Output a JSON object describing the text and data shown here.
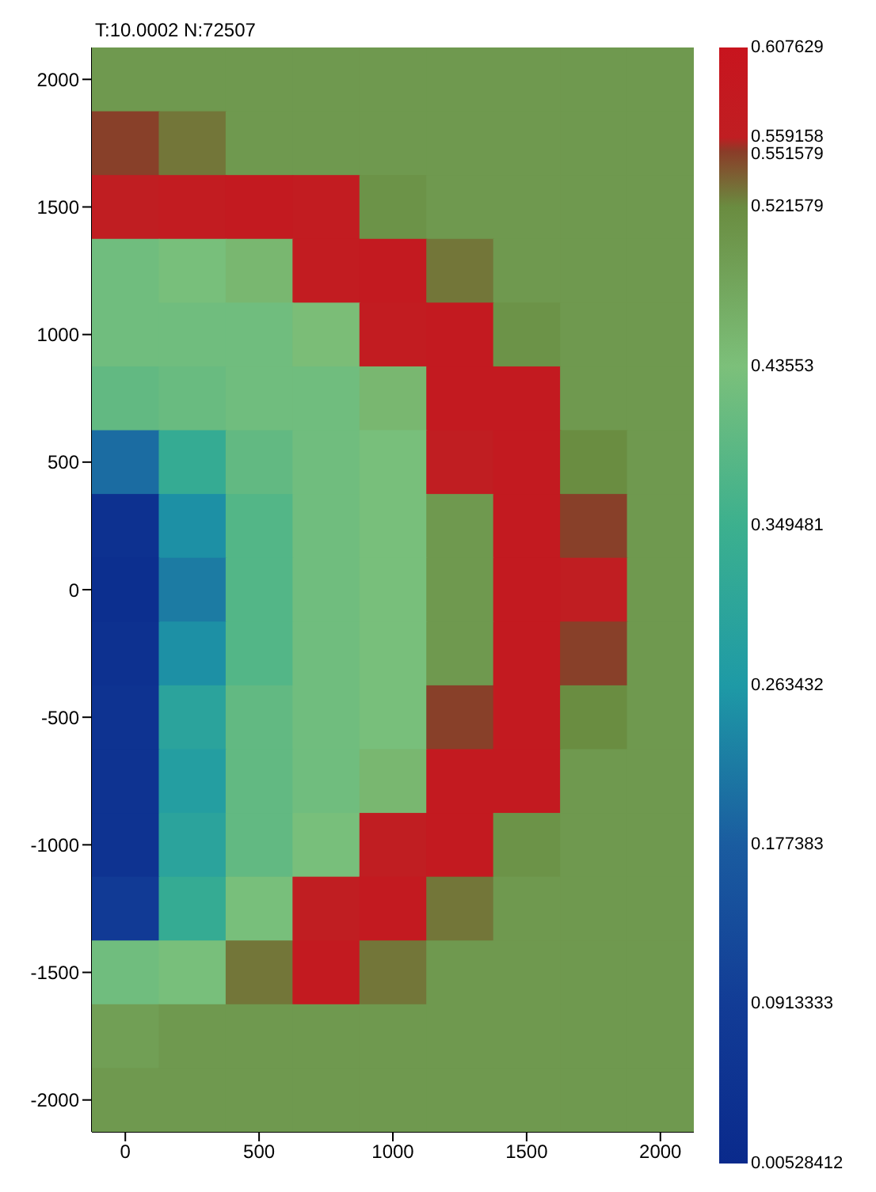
{
  "chart_data": {
    "type": "heatmap",
    "title": "T:10.0002 N:72507",
    "categories": [
      "0",
      null,
      "500",
      null,
      "1000",
      null,
      "1500",
      null,
      "2000"
    ],
    "y_categories": [
      "2000",
      null,
      "1500",
      null,
      "1000",
      null,
      "500",
      null,
      "0",
      null,
      "-500",
      null,
      "-1000",
      null,
      "-1500",
      null,
      "-2000"
    ],
    "clim": [
      0.00528412,
      0.607629
    ],
    "cticks": [
      0.00528412,
      0.0913333,
      0.177383,
      0.263432,
      0.349481,
      0.43553,
      0.521579,
      0.551579,
      0.559158,
      0.607629
    ],
    "cells": [
      [
        0.5,
        0.5,
        0.5,
        0.5,
        0.5,
        0.5,
        0.5,
        0.5,
        0.5
      ],
      [
        0.55,
        0.53,
        0.5,
        0.5,
        0.5,
        0.5,
        0.5,
        0.5,
        0.5
      ],
      [
        0.56,
        0.57,
        0.58,
        0.57,
        0.51,
        0.5,
        0.5,
        0.5,
        0.5
      ],
      [
        0.42,
        0.43,
        0.45,
        0.57,
        0.58,
        0.53,
        0.5,
        0.5,
        0.5
      ],
      [
        0.42,
        0.42,
        0.42,
        0.44,
        0.57,
        0.58,
        0.51,
        0.5,
        0.5
      ],
      [
        0.4,
        0.41,
        0.42,
        0.42,
        0.45,
        0.58,
        0.58,
        0.5,
        0.5
      ],
      [
        0.2,
        0.33,
        0.4,
        0.42,
        0.43,
        0.56,
        0.58,
        0.52,
        0.5
      ],
      [
        0.04,
        0.25,
        0.38,
        0.42,
        0.43,
        0.5,
        0.58,
        0.55,
        0.5
      ],
      [
        0.03,
        0.22,
        0.38,
        0.42,
        0.43,
        0.5,
        0.58,
        0.56,
        0.5
      ],
      [
        0.04,
        0.25,
        0.38,
        0.42,
        0.43,
        0.5,
        0.58,
        0.55,
        0.5
      ],
      [
        0.05,
        0.3,
        0.4,
        0.42,
        0.43,
        0.55,
        0.58,
        0.52,
        0.5
      ],
      [
        0.05,
        0.28,
        0.4,
        0.42,
        0.45,
        0.58,
        0.58,
        0.5,
        0.5
      ],
      [
        0.05,
        0.3,
        0.4,
        0.43,
        0.56,
        0.58,
        0.51,
        0.5,
        0.5
      ],
      [
        0.08,
        0.33,
        0.43,
        0.56,
        0.58,
        0.53,
        0.5,
        0.5,
        0.5
      ],
      [
        0.42,
        0.43,
        0.53,
        0.58,
        0.53,
        0.5,
        0.5,
        0.5,
        0.5
      ],
      [
        0.49,
        0.5,
        0.5,
        0.5,
        0.5,
        0.5,
        0.5,
        0.5,
        0.5
      ],
      [
        0.5,
        0.5,
        0.5,
        0.5,
        0.5,
        0.5,
        0.5,
        0.5,
        0.5
      ]
    ]
  }
}
